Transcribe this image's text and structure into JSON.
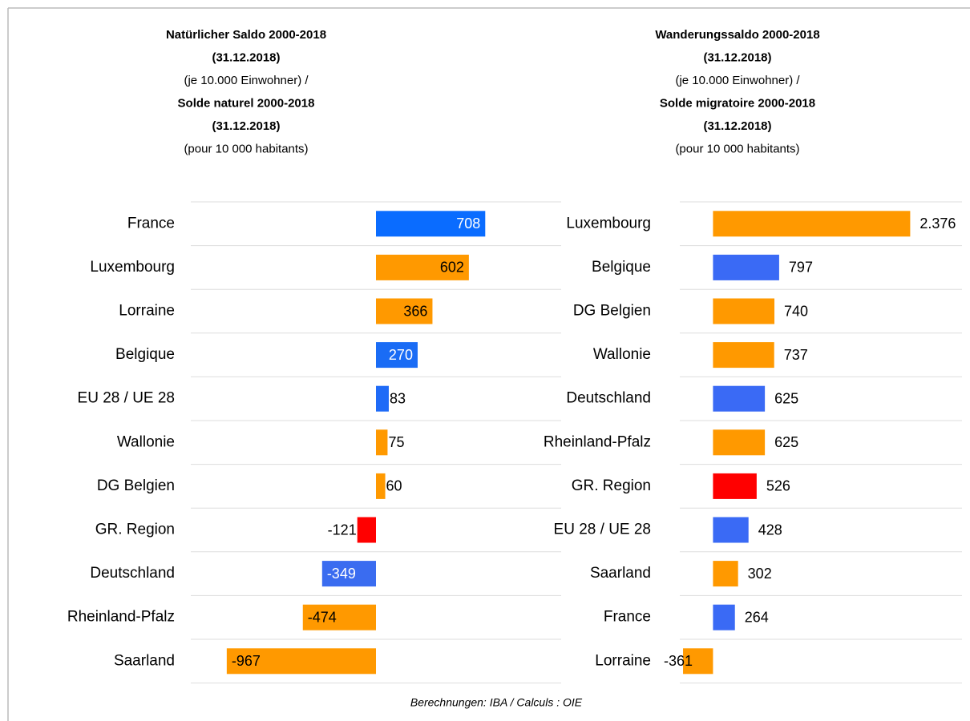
{
  "source": "Berechnungen: IBA / Calculs : OIE",
  "chart_data": [
    {
      "type": "bar",
      "orientation": "horizontal",
      "title_lines": [
        "Natürlicher Saldo 2000-2018",
        "(31.12.2018)",
        "(je 10.000 Einwohner) /",
        "Solde naturel 2000-2018",
        "(31.12.2018)",
        "(pour 10 000 habitants)"
      ],
      "categories": [
        "France",
        "Luxembourg",
        "Lorraine",
        "Belgique",
        "EU 28 / UE 28",
        "Wallonie",
        "DG Belgien",
        "GR. Region",
        "Deutschland",
        "Rheinland-Pfalz",
        "Saarland"
      ],
      "values": [
        708,
        602,
        366,
        270,
        83,
        75,
        60,
        -121,
        -349,
        -474,
        -967
      ],
      "colors": [
        "#0a6cff",
        "#ff9900",
        "#ff9900",
        "#1a6cf5",
        "#1f6bf7",
        "#ff9900",
        "#ff9900",
        "#ff0000",
        "#3a6cf0",
        "#ff9900",
        "#ff9900"
      ],
      "xlim": [
        -1200,
        1200
      ]
    },
    {
      "type": "bar",
      "orientation": "horizontal",
      "title_lines": [
        "Wanderungssaldo 2000-2018",
        "(31.12.2018)",
        "(je 10.000 Einwohner) /",
        "Solde migratoire 2000-2018",
        "(31.12.2018)",
        "(pour 10 000 habitants)"
      ],
      "categories": [
        "Luxembourg",
        "Belgique",
        "DG Belgien",
        "Wallonie",
        "Deutschland",
        "Rheinland-Pfalz",
        "GR. Region",
        "EU 28 / UE 28",
        "Saarland",
        "France",
        "Lorraine"
      ],
      "values": [
        2376,
        797,
        740,
        737,
        625,
        625,
        526,
        428,
        302,
        264,
        -361
      ],
      "value_labels": [
        "2.376",
        "797",
        "740",
        "737",
        "625",
        "625",
        "526",
        "428",
        "302",
        "264",
        "-361"
      ],
      "colors": [
        "#ff9900",
        "#3a6af5",
        "#ff9900",
        "#ff9900",
        "#3a6af5",
        "#ff9900",
        "#ff0000",
        "#3a6af5",
        "#ff9900",
        "#3a6af5",
        "#ff9900"
      ],
      "xlim": [
        -400,
        3000
      ]
    }
  ]
}
